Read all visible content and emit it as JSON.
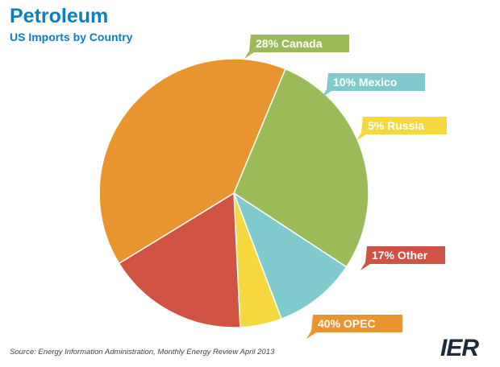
{
  "title": "Petroleum",
  "subtitle": "US Imports by Country",
  "source": "Source: Energy Information Administration, Monthly Energy Review April 2013",
  "logo_text": "IER",
  "chart_data": {
    "type": "pie",
    "title": "Petroleum",
    "subtitle": "US Imports by Country",
    "slices": [
      {
        "name": "Canada",
        "value": 28,
        "label": "28% Canada",
        "color": "#9bbb59"
      },
      {
        "name": "Mexico",
        "value": 10,
        "label": "10% Mexico",
        "color": "#7ecacc"
      },
      {
        "name": "Russia",
        "value": 5,
        "label": "5% Russia",
        "color": "#f5d83d"
      },
      {
        "name": "Other",
        "value": 17,
        "label": "17% Other",
        "color": "#cf5242"
      },
      {
        "name": "OPEC",
        "value": 40,
        "label": "40% OPEC",
        "color": "#e8942f"
      }
    ]
  }
}
